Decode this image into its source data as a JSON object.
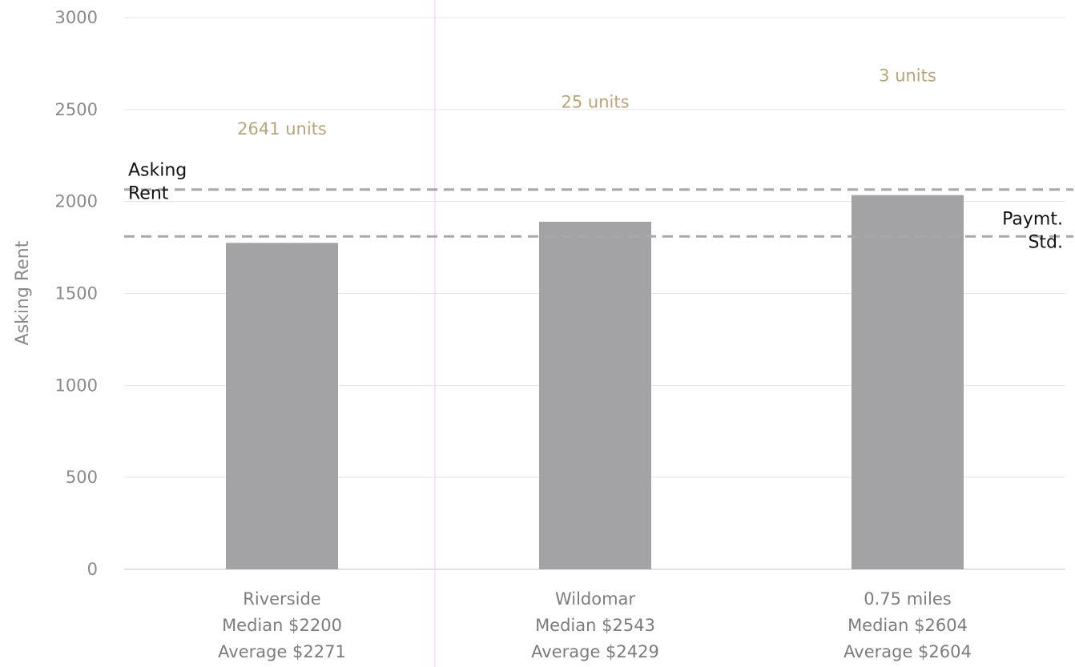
{
  "chart_data": {
    "type": "bar",
    "categories": [
      [
        "Riverside",
        "Median $2200",
        "Average $2271"
      ],
      [
        "Wildomar",
        "Median $2543",
        "Average $2429"
      ],
      [
        "0.75 miles",
        "Median $2604",
        "Average $2604"
      ]
    ],
    "values": [
      1775,
      1890,
      2035
    ],
    "unit_counts": [
      {
        "label": "2641 units",
        "value": 2395
      },
      {
        "label": "25 units",
        "value": 2540
      },
      {
        "label": "3 units",
        "value": 2685
      }
    ],
    "ylabel": "Asking Rent",
    "ylim": [
      0,
      3000
    ],
    "yticks": [
      0,
      500,
      1000,
      1500,
      2000,
      2500,
      3000
    ],
    "reference_lines": [
      {
        "label": [
          "Asking",
          "Rent"
        ],
        "value": 2065,
        "label_position": "left"
      },
      {
        "label": [
          "Paymt.",
          "Std."
        ],
        "value": 1810,
        "label_position": "right"
      }
    ],
    "grid": true,
    "colors": {
      "bar": "#a3a3a6",
      "reference_line": "#a8a8a8",
      "unit_label": "#b8a57c",
      "divider": "#f0c9ef"
    }
  }
}
